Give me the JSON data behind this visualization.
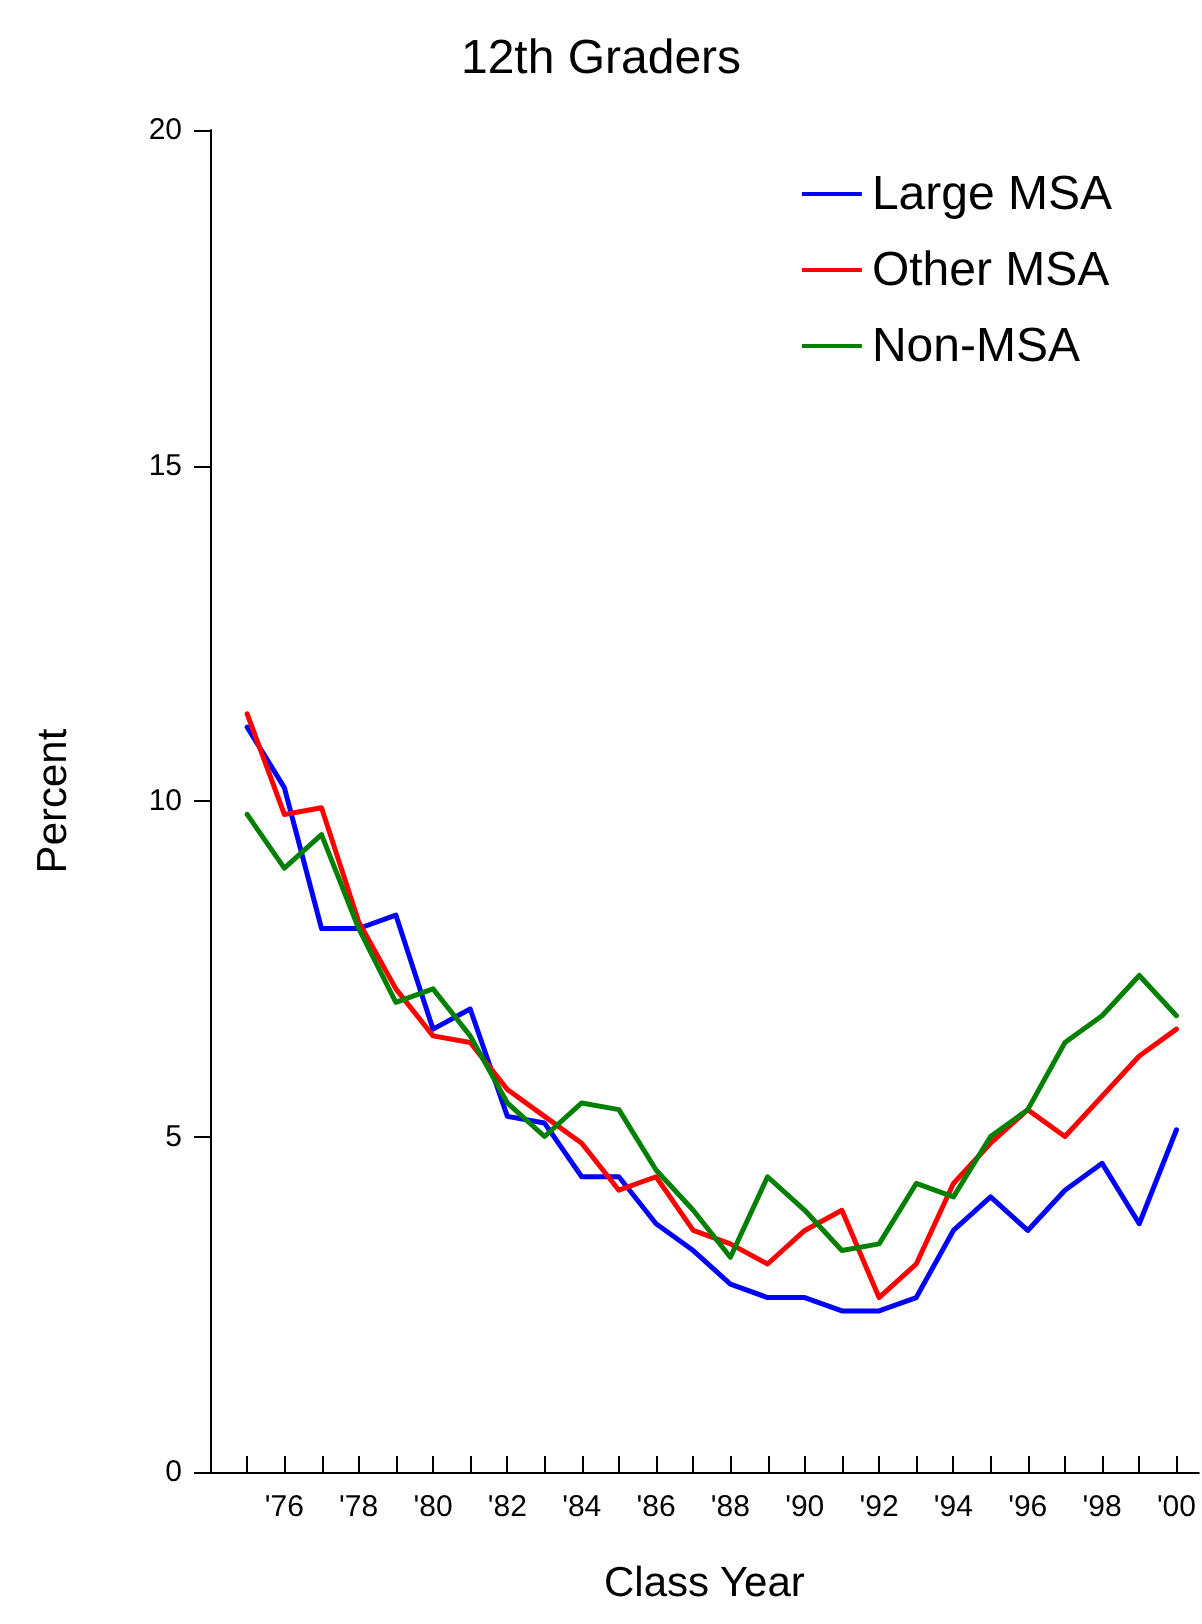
{
  "chart_data": {
    "type": "line",
    "title": "12th Graders",
    "xlabel": "Class Year",
    "ylabel": "Percent",
    "x": [
      1975,
      1976,
      1977,
      1978,
      1979,
      1980,
      1981,
      1982,
      1983,
      1984,
      1985,
      1986,
      1987,
      1988,
      1989,
      1990,
      1991,
      1992,
      1993,
      1994,
      1995,
      1996,
      1997,
      1998,
      1999,
      2000
    ],
    "series": [
      {
        "name": "Large MSA",
        "color": "#0000ff",
        "values": [
          11.1,
          10.2,
          8.1,
          8.1,
          8.3,
          6.6,
          6.9,
          5.3,
          5.2,
          4.4,
          4.4,
          3.7,
          3.3,
          2.8,
          2.6,
          2.6,
          2.4,
          2.4,
          2.6,
          3.6,
          4.1,
          3.6,
          4.2,
          4.6,
          3.7,
          5.1
        ]
      },
      {
        "name": "Other MSA",
        "color": "#ff0000",
        "values": [
          11.3,
          9.8,
          9.9,
          8.2,
          7.2,
          6.5,
          6.4,
          5.7,
          5.3,
          4.9,
          4.2,
          4.4,
          3.6,
          3.4,
          3.1,
          3.6,
          3.9,
          2.6,
          3.1,
          4.3,
          4.9,
          5.4,
          5.0,
          5.6,
          6.2,
          6.6
        ]
      },
      {
        "name": "Non-MSA",
        "color": "#008000",
        "values": [
          9.8,
          9.0,
          9.5,
          8.1,
          7.0,
          7.2,
          6.5,
          5.5,
          5.0,
          5.5,
          5.4,
          4.5,
          3.9,
          3.2,
          4.4,
          3.9,
          3.3,
          3.4,
          4.3,
          4.1,
          5.0,
          5.4,
          6.4,
          6.8,
          7.4,
          6.8
        ]
      }
    ],
    "xlim": [
      1974,
      2000.6
    ],
    "xticks": [
      {
        "value": 1975,
        "label": null
      },
      {
        "value": 1976,
        "label": "'76"
      },
      {
        "value": 1977,
        "label": null
      },
      {
        "value": 1978,
        "label": "'78"
      },
      {
        "value": 1979,
        "label": null
      },
      {
        "value": 1980,
        "label": "'80"
      },
      {
        "value": 1981,
        "label": null
      },
      {
        "value": 1982,
        "label": "'82"
      },
      {
        "value": 1983,
        "label": null
      },
      {
        "value": 1984,
        "label": "'84"
      },
      {
        "value": 1985,
        "label": null
      },
      {
        "value": 1986,
        "label": "'86"
      },
      {
        "value": 1987,
        "label": null
      },
      {
        "value": 1988,
        "label": "'88"
      },
      {
        "value": 1989,
        "label": null
      },
      {
        "value": 1990,
        "label": "'90"
      },
      {
        "value": 1991,
        "label": null
      },
      {
        "value": 1992,
        "label": "'92"
      },
      {
        "value": 1993,
        "label": null
      },
      {
        "value": 1994,
        "label": "'94"
      },
      {
        "value": 1995,
        "label": null
      },
      {
        "value": 1996,
        "label": "'96"
      },
      {
        "value": 1997,
        "label": null
      },
      {
        "value": 1998,
        "label": "'98"
      },
      {
        "value": 1999,
        "label": null
      },
      {
        "value": 2000,
        "label": "'00"
      }
    ],
    "ylim": [
      0,
      20
    ],
    "yticks": [
      0,
      5,
      10,
      15,
      20
    ],
    "grid": false,
    "legend": "top right",
    "marker": "none",
    "line_style": "solid"
  }
}
